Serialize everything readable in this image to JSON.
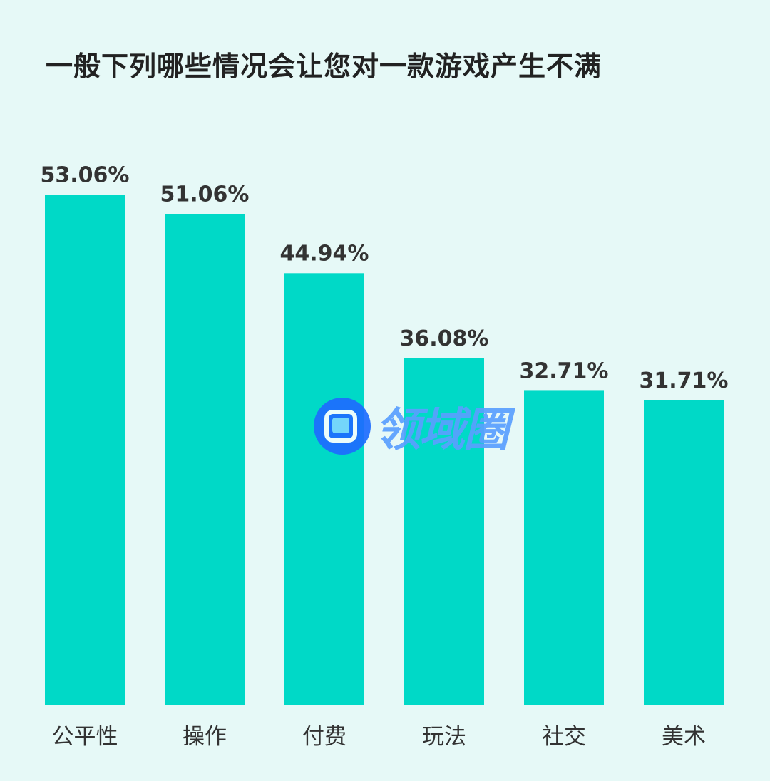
{
  "chart_data": {
    "type": "bar",
    "title": "一般下列哪些情况会让您对一款游戏产生不满",
    "categories": [
      "公平性",
      "操作",
      "付费",
      "玩法",
      "社交",
      "美术"
    ],
    "values": [
      53.06,
      51.06,
      44.94,
      36.08,
      32.71,
      31.71
    ],
    "value_labels": [
      "53.06%",
      "51.06%",
      "44.94%",
      "36.08%",
      "32.71%",
      "31.71%"
    ],
    "ylim": [
      0,
      60
    ],
    "grid": false,
    "legend": "none",
    "bar_color": "#00d9c7"
  },
  "watermark": {
    "text": "领域圈",
    "color": "#1e6cff"
  }
}
